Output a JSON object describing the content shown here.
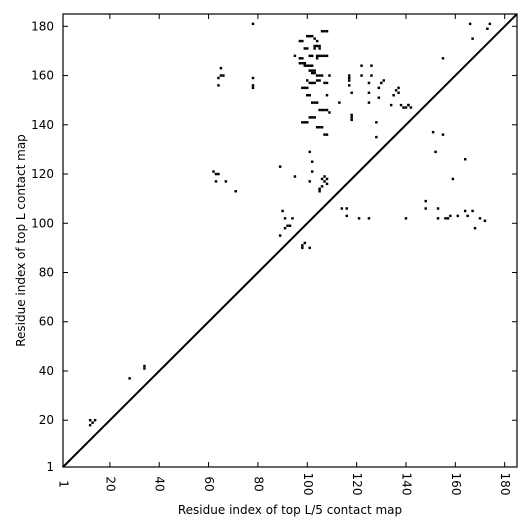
{
  "chart_data": {
    "type": "scatter",
    "xlabel": "Residue index of top L/5 contact map",
    "ylabel": "Residue index of top L contact map",
    "xlim": [
      1,
      185
    ],
    "ylim": [
      1,
      185
    ],
    "xticks": [
      1,
      20,
      40,
      60,
      80,
      100,
      120,
      140,
      160,
      180
    ],
    "yticks": [
      1,
      20,
      40,
      60,
      80,
      100,
      120,
      140,
      160,
      180
    ],
    "grid": false,
    "diagonal": true,
    "marker_color": "#000000",
    "marker": "square",
    "series": [
      {
        "x": [
          12,
          13,
          12,
          14,
          28,
          34,
          34
        ],
        "y": [
          18,
          19,
          20,
          20,
          37,
          41,
          42
        ]
      },
      {
        "x": [
          62,
          63,
          64,
          63,
          64,
          65,
          66,
          64,
          65,
          67,
          71,
          78,
          78,
          78,
          78,
          89,
          90,
          91,
          89,
          91,
          92,
          93,
          94,
          95,
          95,
          98,
          98,
          99,
          100,
          101,
          101,
          102,
          101,
          102,
          102,
          103,
          104,
          105,
          105,
          106,
          106,
          107,
          107,
          108,
          108,
          108,
          109,
          109,
          113,
          114,
          116,
          116,
          117,
          117,
          117,
          117,
          118,
          118,
          118,
          118,
          121,
          122,
          122,
          125,
          125,
          125,
          125,
          126,
          126,
          128,
          128,
          129,
          129,
          130,
          131,
          134,
          135,
          136,
          137,
          138,
          137,
          139,
          140,
          141,
          142,
          140,
          141,
          148,
          148,
          151,
          152,
          153,
          153,
          155,
          155,
          156,
          157,
          158,
          159,
          161,
          164,
          164,
          165,
          166,
          167,
          167,
          168,
          170,
          172,
          173,
          174
        ],
        "y": [
          121,
          120,
          120,
          117,
          159,
          160,
          160,
          156,
          163,
          117,
          113,
          181,
          159,
          156,
          155,
          123,
          105,
          102,
          95,
          98,
          99,
          99,
          102,
          119,
          168,
          91,
          90,
          92,
          158,
          90,
          117,
          121,
          129,
          125,
          164,
          175,
          167,
          114,
          113,
          118,
          115,
          119,
          117,
          116,
          118,
          152,
          145,
          160,
          149,
          106,
          103,
          106,
          156,
          158,
          159,
          160,
          143,
          142,
          144,
          153,
          102,
          160,
          164,
          102,
          149,
          153,
          157,
          160,
          164,
          135,
          141,
          151,
          155,
          157,
          158,
          148,
          152,
          154,
          155,
          148,
          153,
          147,
          147,
          148,
          147,
          102,
          148,
          106,
          109,
          137,
          129,
          102,
          106,
          136,
          167,
          102,
          102,
          103,
          118,
          103,
          105,
          126,
          103,
          181,
          175,
          105,
          98,
          102,
          101,
          179,
          181
        ]
      },
      {
        "x": [
          97,
          98,
          99,
          100,
          101,
          102,
          103,
          104,
          105,
          106,
          107,
          108,
          97,
          98,
          99,
          100,
          101,
          102,
          103,
          104,
          105,
          98,
          99,
          100,
          101,
          102,
          103,
          104,
          105,
          106,
          107,
          108,
          97,
          98,
          99,
          100,
          101,
          102,
          103,
          104,
          105,
          106,
          107,
          108,
          98,
          99,
          100,
          101,
          102,
          103,
          104,
          105,
          106,
          107,
          108,
          100,
          101,
          102,
          103,
          104,
          105,
          106,
          107,
          108,
          101,
          102,
          103,
          104,
          105
        ],
        "y": [
          174,
          174,
          171,
          171,
          168,
          168,
          171,
          174,
          171,
          168,
          168,
          168,
          167,
          167,
          164,
          164,
          164,
          161,
          161,
          158,
          158,
          155,
          155,
          155,
          157,
          157,
          157,
          160,
          160,
          160,
          157,
          157,
          165,
          165,
          165,
          152,
          152,
          149,
          149,
          149,
          146,
          146,
          146,
          146,
          141,
          141,
          141,
          143,
          143,
          143,
          139,
          139,
          139,
          136,
          136,
          176,
          176,
          176,
          172,
          172,
          172,
          178,
          178,
          178,
          162,
          162,
          162,
          168,
          168
        ]
      }
    ]
  }
}
